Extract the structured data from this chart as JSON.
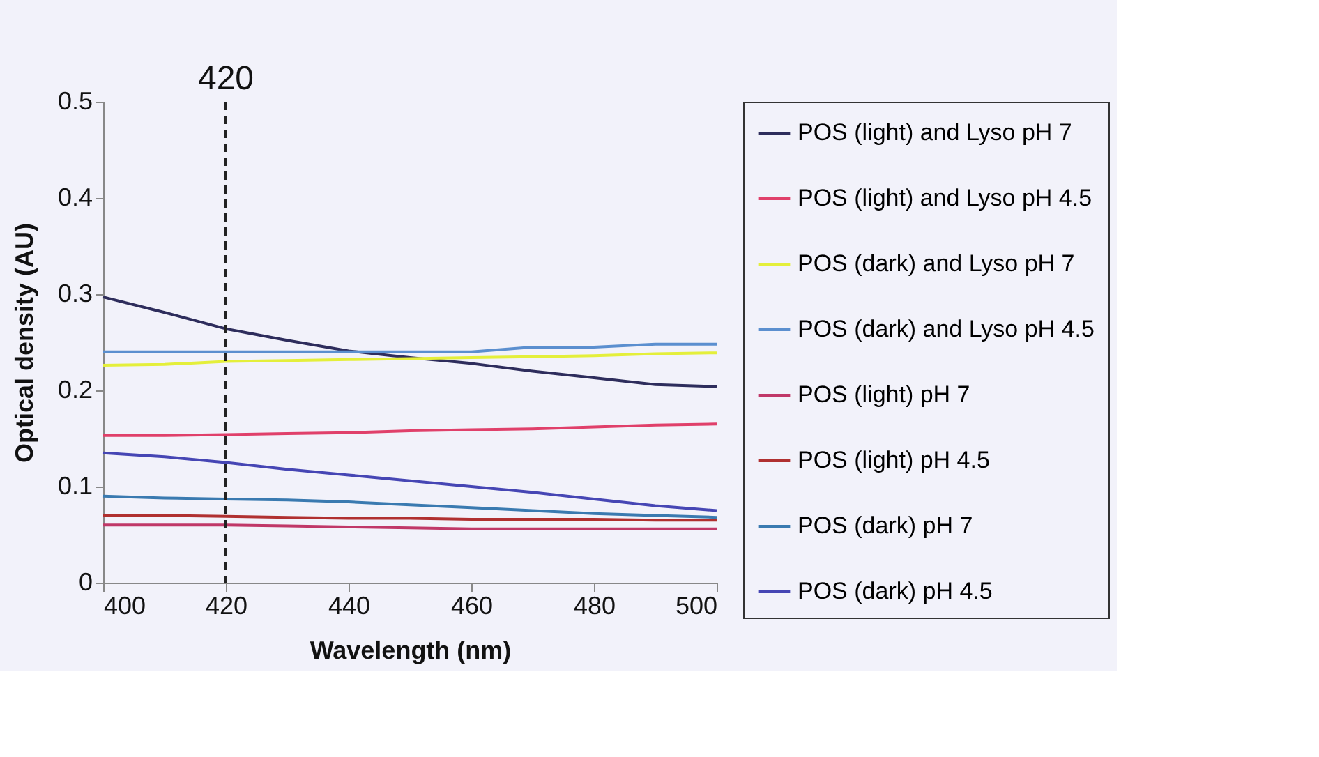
{
  "chart_data": {
    "type": "line",
    "xlabel": "Wavelength (nm)",
    "ylabel": "Optical density (AU)",
    "x": [
      400,
      410,
      420,
      430,
      440,
      450,
      460,
      470,
      480,
      490,
      500
    ],
    "series": [
      {
        "name": "POS (light) and Lyso pH 7",
        "color": "#2e2d5c",
        "values": [
          0.297,
          0.281,
          0.264,
          0.252,
          0.241,
          0.234,
          0.228,
          0.22,
          0.213,
          0.206,
          0.204
        ]
      },
      {
        "name": "POS (light) and Lyso pH 4.5",
        "color": "#e0406a",
        "values": [
          0.153,
          0.153,
          0.154,
          0.155,
          0.156,
          0.158,
          0.159,
          0.16,
          0.162,
          0.164,
          0.165
        ]
      },
      {
        "name": "POS (dark) and Lyso pH 7",
        "color": "#e4ef3a",
        "values": [
          0.226,
          0.227,
          0.23,
          0.231,
          0.232,
          0.233,
          0.234,
          0.235,
          0.236,
          0.238,
          0.239
        ]
      },
      {
        "name": "POS (dark) and Lyso pH 4.5",
        "color": "#5b8fcf",
        "values": [
          0.24,
          0.24,
          0.24,
          0.24,
          0.24,
          0.24,
          0.24,
          0.245,
          0.245,
          0.248,
          0.248
        ]
      },
      {
        "name": "POS (light) pH 7",
        "color": "#c03868",
        "values": [
          0.06,
          0.06,
          0.06,
          0.059,
          0.058,
          0.057,
          0.056,
          0.056,
          0.056,
          0.056,
          0.056
        ]
      },
      {
        "name": "POS (light) pH 4.5",
        "color": "#b03030",
        "values": [
          0.07,
          0.07,
          0.069,
          0.068,
          0.067,
          0.067,
          0.066,
          0.066,
          0.066,
          0.065,
          0.065
        ]
      },
      {
        "name": "POS (dark) pH 7",
        "color": "#3a7ab0",
        "values": [
          0.09,
          0.088,
          0.087,
          0.086,
          0.084,
          0.081,
          0.078,
          0.075,
          0.072,
          0.07,
          0.068
        ]
      },
      {
        "name": "POS (dark) pH 4.5",
        "color": "#4646b4",
        "values": [
          0.135,
          0.131,
          0.125,
          0.118,
          0.112,
          0.106,
          0.1,
          0.094,
          0.087,
          0.08,
          0.075
        ]
      }
    ],
    "xlim": [
      400,
      500
    ],
    "xticks": [
      400,
      420,
      440,
      460,
      480,
      500
    ],
    "ylim": [
      0,
      0.5
    ],
    "yticks": [
      0,
      0.1,
      0.2,
      0.3,
      0.4,
      0.5
    ],
    "ref_lines": [
      {
        "axis": "x",
        "value": 420,
        "label": "420",
        "color": "#222222",
        "line_style": "dashed"
      }
    ],
    "grid": false,
    "legend": "right",
    "marker": "none",
    "line_style": "solid"
  }
}
